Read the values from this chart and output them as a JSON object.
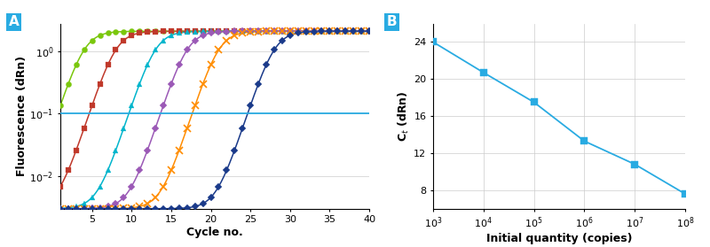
{
  "panel_A": {
    "xlabel": "Cycle no.",
    "ylabel": "Fluorescence (dRn)",
    "threshold": 0.1,
    "threshold_color": "#29ABE2",
    "curves": [
      {
        "color": "#7AC70C",
        "marker": "o",
        "ct": 4,
        "slope": 0.9,
        "baseline": 0.003,
        "plateau": 2.1
      },
      {
        "color": "#C0392B",
        "marker": "s",
        "ct": 8,
        "slope": 0.9,
        "baseline": 0.003,
        "plateau": 2.1
      },
      {
        "color": "#00B5CC",
        "marker": "^",
        "ct": 13,
        "slope": 0.9,
        "baseline": 0.003,
        "plateau": 2.1
      },
      {
        "color": "#9B59B6",
        "marker": "D",
        "ct": 17,
        "slope": 0.9,
        "baseline": 0.003,
        "plateau": 2.1
      },
      {
        "color": "#FF8C00",
        "marker": "x",
        "ct": 21,
        "slope": 0.9,
        "baseline": 0.003,
        "plateau": 2.1
      },
      {
        "color": "#1A3A8A",
        "marker": "D",
        "ct": 28,
        "slope": 0.9,
        "baseline": 0.003,
        "plateau": 2.1
      }
    ],
    "grid_color": "#CCCCCC",
    "ylim_low": 0.003,
    "ylim_high": 2.8,
    "xlim": [
      1,
      40
    ]
  },
  "panel_B": {
    "xlabel": "Initial quantity (copies)",
    "ylabel": "C$_t$ (dRn)",
    "data_x": [
      1000.0,
      10000.0,
      100000.0,
      1000000.0,
      10000000.0,
      100000000.0
    ],
    "data_y": [
      24.0,
      20.7,
      17.5,
      13.3,
      10.8,
      7.6
    ],
    "line_color": "#29ABE2",
    "marker_color": "#29ABE2",
    "ylim": [
      6,
      26
    ],
    "yticks": [
      8,
      12,
      16,
      20,
      24
    ],
    "grid_color": "#CCCCCC"
  }
}
